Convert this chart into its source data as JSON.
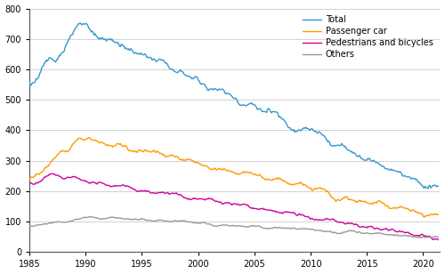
{
  "colors": {
    "total": "#3399CC",
    "passenger_car": "#FF9900",
    "pedestrians_bicycles": "#CC0099",
    "others": "#999999"
  },
  "legend_labels": [
    "Total",
    "Passenger car",
    "Pedestrians and bicycles",
    "Others"
  ],
  "ylim": [
    0,
    800
  ],
  "yticks": [
    0,
    100,
    200,
    300,
    400,
    500,
    600,
    700,
    800
  ],
  "xticks": [
    1985,
    1990,
    1995,
    2000,
    2005,
    2010,
    2015,
    2020
  ],
  "background_color": "#ffffff",
  "grid_color": "#cccccc",
  "line_width": 1.0
}
